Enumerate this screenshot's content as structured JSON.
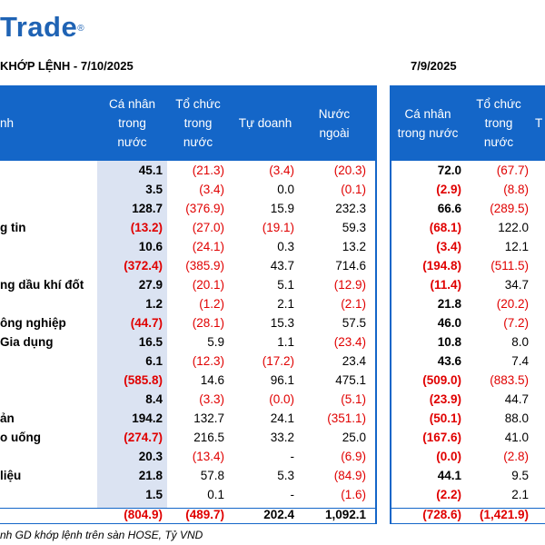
{
  "logo": {
    "text": "Trade",
    "mark": "®"
  },
  "left_title": "KHỚP LỆNH - 7/10/2025",
  "right_title": "7/9/2025",
  "header_left": {
    "col_name": "nh",
    "ca_nhan_1": "Cá nhân",
    "ca_nhan_2": "trong",
    "ca_nhan_3": "nước",
    "to_chuc_1": "Tổ chức",
    "to_chuc_2": "trong",
    "to_chuc_3": "nước",
    "tu_doanh": "Tự doanh",
    "nuoc_ngoai_1": "Nước",
    "nuoc_ngoai_2": "ngoài"
  },
  "header_right": {
    "ca_nhan_1": "Cá nhân",
    "ca_nhan_2": "trong nước",
    "to_chuc_1": "Tổ chức",
    "to_chuc_2": "trong",
    "to_chuc_3": "nước",
    "next_1": "T"
  },
  "rows": [
    {
      "name": "",
      "l": [
        "45.1",
        "(21.3)",
        "(3.4)",
        "(20.3)"
      ],
      "r": [
        "72.0",
        "(67.7)"
      ]
    },
    {
      "name": "",
      "l": [
        "3.5",
        "(3.4)",
        "0.0",
        "(0.1)"
      ],
      "r": [
        "(2.9)",
        "(8.8)"
      ]
    },
    {
      "name": "",
      "l": [
        "128.7",
        "(376.9)",
        "15.9",
        "232.3"
      ],
      "r": [
        "66.6",
        "(289.5)"
      ]
    },
    {
      "name": "g tin",
      "l": [
        "(13.2)",
        "(27.0)",
        "(19.1)",
        "59.3"
      ],
      "r": [
        "(68.1)",
        "122.0"
      ]
    },
    {
      "name": "",
      "l": [
        "10.6",
        "(24.1)",
        "0.3",
        "13.2"
      ],
      "r": [
        "(3.4)",
        "12.1"
      ]
    },
    {
      "name": "",
      "l": [
        "(372.4)",
        "(385.9)",
        "43.7",
        "714.6"
      ],
      "r": [
        "(194.8)",
        "(511.5)"
      ]
    },
    {
      "name": "ng dầu khí đốt",
      "l": [
        "27.9",
        "(20.1)",
        "5.1",
        "(12.9)"
      ],
      "r": [
        "(11.4)",
        "34.7"
      ]
    },
    {
      "name": "",
      "l": [
        "1.2",
        "(1.2)",
        "2.1",
        "(2.1)"
      ],
      "r": [
        "21.8",
        "(20.2)"
      ]
    },
    {
      "name": "ông nghiệp",
      "l": [
        "(44.7)",
        "(28.1)",
        "15.3",
        "57.5"
      ],
      "r": [
        "46.0",
        "(7.2)"
      ]
    },
    {
      "name": "Gia dụng",
      "l": [
        "16.5",
        "5.9",
        "1.1",
        "(23.4)"
      ],
      "r": [
        "10.8",
        "8.0"
      ]
    },
    {
      "name": "",
      "l": [
        "6.1",
        "(12.3)",
        "(17.2)",
        "23.4"
      ],
      "r": [
        "43.6",
        "7.4"
      ]
    },
    {
      "name": "",
      "l": [
        "(585.8)",
        "14.6",
        "96.1",
        "475.1"
      ],
      "r": [
        "(509.0)",
        "(883.5)"
      ]
    },
    {
      "name": "",
      "l": [
        "8.4",
        "(3.3)",
        "(0.0)",
        "(5.1)"
      ],
      "r": [
        "(23.9)",
        "44.7"
      ]
    },
    {
      "name": "ản",
      "l": [
        "194.2",
        "132.7",
        "24.1",
        "(351.1)"
      ],
      "r": [
        "(50.1)",
        "88.0"
      ]
    },
    {
      "name": "o uống",
      "l": [
        "(274.7)",
        "216.5",
        "33.2",
        "25.0"
      ],
      "r": [
        "(167.6)",
        "41.0"
      ]
    },
    {
      "name": "",
      "l": [
        "20.3",
        "(13.4)",
        "-",
        "(6.9)"
      ],
      "r": [
        "(0.0)",
        "(2.8)"
      ]
    },
    {
      "name": "liệu",
      "l": [
        "21.8",
        "57.8",
        "5.3",
        "(84.9)"
      ],
      "r": [
        "44.1",
        "9.5"
      ]
    },
    {
      "name": "",
      "l": [
        "1.5",
        "0.1",
        "-",
        "(1.6)"
      ],
      "r": [
        "(2.2)",
        "2.1"
      ]
    }
  ],
  "total": {
    "l": [
      "(804.9)",
      "(489.7)",
      "202.4",
      "1,092.1"
    ],
    "r": [
      "(728.6)",
      "(1,421.9)"
    ]
  },
  "footer": "nh GD khớp lệnh trên sàn HOSE, Tỷ VND",
  "colors": {
    "header_bg": "#1466c8",
    "negative": "#e00000",
    "highlight": "#dbe3f2",
    "brand": "#1f63b4"
  }
}
